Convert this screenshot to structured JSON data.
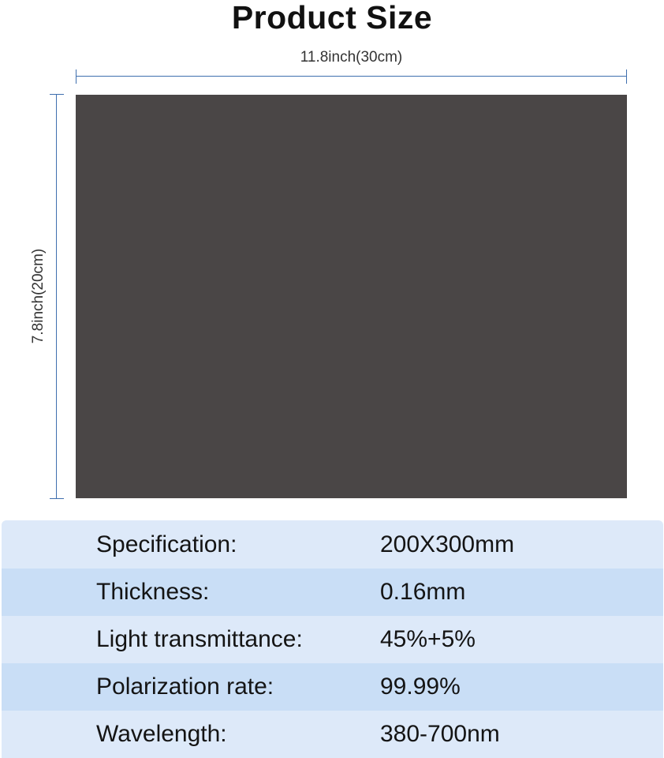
{
  "title": "Product Size",
  "dimensions": {
    "width": "11.8inch(30cm)",
    "height": "7.8inch(20cm)"
  },
  "sheet_color": "#4a4646",
  "accent_color": "#3f6fae",
  "specs": [
    {
      "label": "Specification:",
      "value": "200X300mm"
    },
    {
      "label": "Thickness:",
      "value": "0.16mm"
    },
    {
      "label": "Light transmittance:",
      "value": "45%+5%"
    },
    {
      "label": "Polarization rate:",
      "value": "99.99%"
    },
    {
      "label": "Wavelength:",
      "value": "380-700nm"
    }
  ]
}
